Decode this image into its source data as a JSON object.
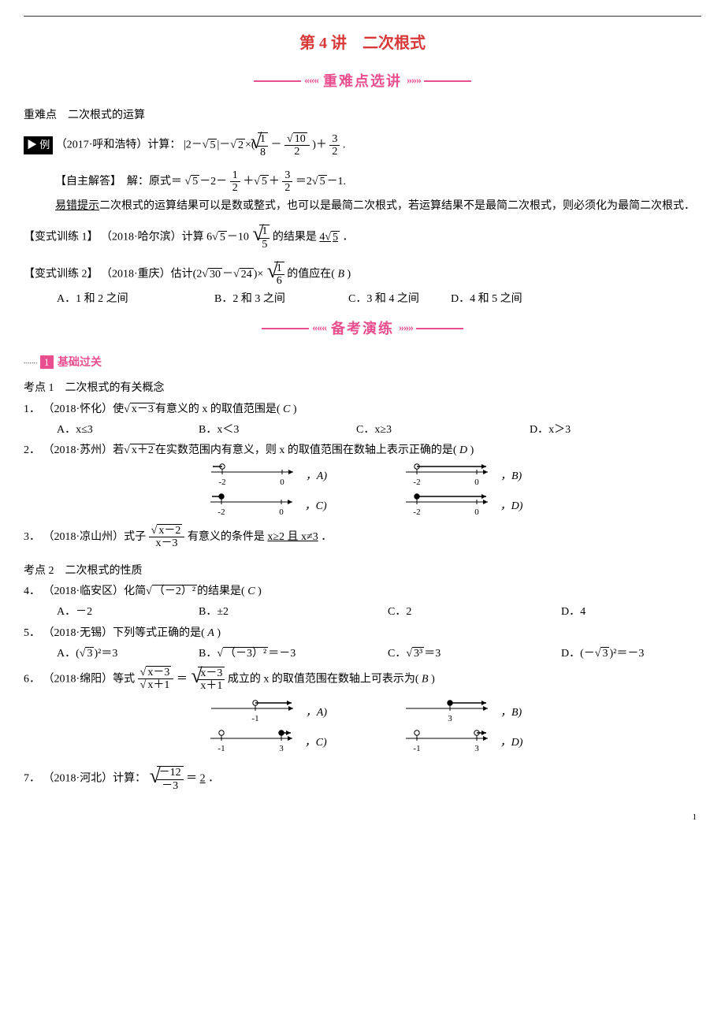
{
  "title": "第 4 讲　二次根式",
  "banner1": "重难点选讲",
  "banner2": "备考演练",
  "subhead1": "重难点　二次根式的运算",
  "example": {
    "badge": "▶ 例",
    "text_prefix": "（2017·呼和浩特）计算：",
    "expr_html": "|2－√<span class='sqrt'>5</span>|－√<span class='sqrt'>2</span>×(",
    "expr_mid": "－",
    "expr_tail": ")＋",
    "f1": {
      "num": "1",
      "den": "8"
    },
    "f2": {
      "num": "√<span class='sqrt'>10</span>",
      "den": "2"
    },
    "f3": {
      "num": "3",
      "den": "2"
    },
    "period": "."
  },
  "answer": {
    "label": "【自主解答】　解：原式＝",
    "body": "√<span class='sqrt'>5</span>－2－",
    "f1": {
      "num": "1",
      "den": "2"
    },
    "mid": "＋√<span class='sqrt'>5</span>＋",
    "f2": {
      "num": "3",
      "den": "2"
    },
    "tail": "＝2√<span class='sqrt'>5</span>－1."
  },
  "tip": {
    "label": "易错提示",
    "text": "二次根式的运算结果可以是数或整式，也可以是最简二次根式，若运算结果不是最简二次根式，则必须化为最简二次根式．"
  },
  "vt1": {
    "label": "【变式训练 1】",
    "text": "（2018·哈尔滨）计算 6√<span class='sqrt'>5</span>－10",
    "frac": {
      "num": "1",
      "den": "5"
    },
    "tail": "的结果是",
    "ans": "4√<span class='sqrt'>5</span>",
    "period": "．"
  },
  "vt2": {
    "label": "【变式训练 2】",
    "text": "（2018·重庆）估计(2√<span class='sqrt'>30</span>－√<span class='sqrt'>24</span>)×",
    "frac": {
      "num": "1",
      "den": "6"
    },
    "tail": "的值应在(",
    "ans": "B",
    "close": ")",
    "options": [
      "A．1 和 2 之间",
      "B．2 和 3 之间",
      "C．3 和 4 之间",
      "D．4 和 5 之间"
    ],
    "opt_widths": [
      200,
      170,
      130,
      130
    ]
  },
  "level1_label": "1",
  "level1_text": "基础过关",
  "kp1": "考点 1　二次根式的有关概念",
  "q1": {
    "num": "1．",
    "text": "（2018·怀化）使√<span class='sqrt'>x－3</span>有意义的 x 的取值范围是(",
    "ans": "C",
    "close": ")",
    "options": [
      "A．x≤3",
      "B．x＜3",
      "C．x≥3",
      "D．x＞3"
    ],
    "opt_widths": [
      180,
      200,
      220,
      120
    ]
  },
  "q2": {
    "num": "2．",
    "text": "（2018·苏州）若√<span class='sqrt'>x＋2</span>在实数范围内有意义，则 x 的取值范围在数轴上表示正确的是(",
    "ans": "D",
    "close": ")",
    "row1": [
      {
        "ticks": [
          "-2",
          "0"
        ],
        "open_at": 0,
        "ray_dir": "left",
        "label": "A"
      },
      {
        "ticks": [
          "-2",
          "0"
        ],
        "open_at": 0,
        "ray_dir": "right",
        "label": "B"
      }
    ],
    "row2": [
      {
        "ticks": [
          "-2",
          "0"
        ],
        "solid_at": 0,
        "ray_dir": "left",
        "label": "C"
      },
      {
        "ticks": [
          "-2",
          "0"
        ],
        "solid_at": 0,
        "ray_dir": "right",
        "label": "D"
      }
    ]
  },
  "q3": {
    "num": "3．",
    "text": "（2018·凉山州）式子",
    "frac": {
      "num": "√<span class='sqrt'>x－2</span>",
      "den": "x－3"
    },
    "tail": "有意义的条件是",
    "ans": "x≥2 且 x≠3",
    "period": "．"
  },
  "kp2": "考点 2　二次根式的性质",
  "q4": {
    "num": "4．",
    "text": "（2018·临安区）化简√<span class='sqrt'>（－2）²</span>的结果是(",
    "ans": "C",
    "close": ")",
    "options": [
      "A．－2",
      "B．±2",
      "C．2",
      "D．4"
    ],
    "opt_widths": [
      180,
      240,
      220,
      120
    ]
  },
  "q5": {
    "num": "5．",
    "text": "（2018·无锡）下列等式正确的是(",
    "ans": "A",
    "close": ")",
    "options": [
      "A．(√<span class='sqrt'>3</span>)²＝3",
      "B．√<span class='sqrt'>（－3）²</span>＝－3",
      "C．√<span class='sqrt'>3³</span>＝3",
      "D．(－√<span class='sqrt'>3</span>)²＝－3"
    ],
    "opt_widths": [
      180,
      240,
      220,
      160
    ]
  },
  "q6": {
    "num": "6．",
    "text": "（2018·绵阳）等式",
    "lhs_num": "√<span class='sqrt'>x－3</span>",
    "lhs_den": "√<span class='sqrt'>x＋1</span>",
    "eq": "＝",
    "rhs_num": "x－3",
    "rhs_den": "x＋1",
    "tail": "成立的 x 的取值范围在数轴上可表示为(",
    "ans": "B",
    "close": ")",
    "row1": [
      {
        "ticks": [
          "-1"
        ],
        "open_ray_right": true,
        "from": -1,
        "label": "A"
      },
      {
        "ticks": [
          "3"
        ],
        "solid_ray_right": true,
        "from": 3,
        "label": "B"
      }
    ],
    "row2": [
      {
        "ticks": [
          "-1",
          "3"
        ],
        "open_at": 0,
        "solid_at": 1,
        "ray_from": 3,
        "label": "C"
      },
      {
        "ticks": [
          "-1",
          "3"
        ],
        "open_at": 0,
        "open_at2": 1,
        "ray_from": 3,
        "label": "D"
      }
    ]
  },
  "q7": {
    "num": "7．",
    "text": "（2018·河北）计算：",
    "frac": {
      "num": "－12",
      "den": "－3"
    },
    "eq": "＝",
    "ans": "2",
    "period": "．"
  },
  "page_num": "1",
  "colors": {
    "accent_red": "#d93838",
    "accent_pink": "#e94f8f",
    "text": "#000000",
    "bg": "#ffffff"
  }
}
